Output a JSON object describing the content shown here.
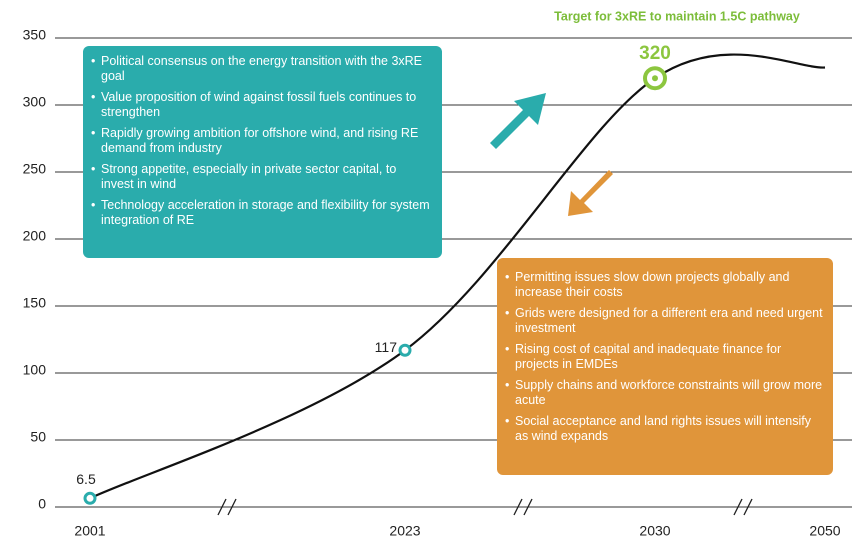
{
  "chart_data": {
    "type": "line",
    "title": "Target for 3xRE to maintain 1.5C pathway",
    "title_color": "#7cbd3a",
    "categories": [
      "2001",
      "2023",
      "2030",
      "2050"
    ],
    "series": [
      {
        "color": "#111111",
        "values": [
          6.5,
          117,
          320,
          328
        ],
        "value_labels": [
          "6.5",
          "117",
          "320",
          null
        ],
        "marker_colors": [
          "#2aacac",
          "#2aacac",
          "#8cc63f",
          null
        ]
      }
    ],
    "ylim": [
      0,
      350
    ],
    "yticks": [
      0,
      50,
      100,
      150,
      200,
      250,
      300,
      350
    ],
    "grid": true,
    "annotations": [
      {
        "color": "#2aacac",
        "items": [
          "Political consensus on the energy transition with the 3xRE goal",
          "Value proposition of wind against fossil fuels continues to strengthen",
          "Rapidly growing ambition for offshore wind, and rising RE demand from industry",
          "Strong appetite, especially in private sector capital, to invest in wind",
          "Technology acceleration in storage and flexibility for system integration of RE"
        ]
      },
      {
        "color": "#e0953a",
        "items": [
          "Permitting issues slow down projects globally and increase their costs",
          "Grids were designed for a different era and need urgent investment",
          "Rising cost of capital and inadequate finance for projects in EMDEs",
          "Supply chains and workforce constraints will grow more acute",
          "Social acceptance and land rights issues will intensify as wind expands"
        ]
      }
    ]
  }
}
